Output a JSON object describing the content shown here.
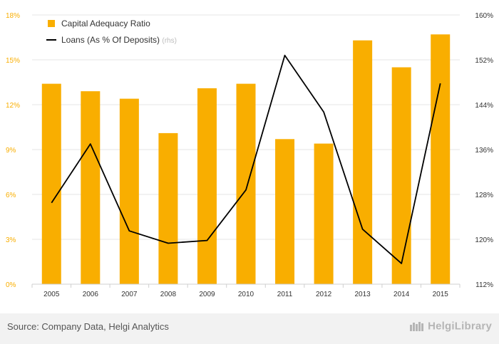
{
  "chart_data": {
    "type": "bar+line",
    "categories": [
      "2005",
      "2006",
      "2007",
      "2008",
      "2009",
      "2010",
      "2011",
      "2012",
      "2013",
      "2014",
      "2015"
    ],
    "series": [
      {
        "name": "Capital Adequacy Ratio",
        "type": "bar",
        "axis": "left",
        "color": "#f9ae00",
        "values": [
          13.4,
          12.9,
          12.4,
          10.1,
          13.1,
          13.4,
          9.7,
          9.4,
          16.3,
          14.5,
          16.7
        ]
      },
      {
        "name": "Loans (As % Of Deposits)",
        "name_suffix": "(rhs)",
        "type": "line",
        "axis": "right",
        "color": "#000000",
        "values": [
          126.5,
          137.0,
          121.5,
          119.3,
          119.8,
          128.8,
          152.8,
          142.7,
          121.8,
          115.7,
          147.8
        ]
      }
    ],
    "y_left": {
      "min": 0,
      "max": 18,
      "ticks": [
        0,
        3,
        6,
        9,
        12,
        15,
        18
      ],
      "tick_labels": [
        "0%",
        "3%",
        "6%",
        "9%",
        "12%",
        "15%",
        "18%"
      ]
    },
    "y_right": {
      "min": 112,
      "max": 160,
      "ticks": [
        112,
        120,
        128,
        136,
        144,
        152,
        160
      ],
      "tick_labels": [
        "112%",
        "120%",
        "128%",
        "136%",
        "144%",
        "152%",
        "160%"
      ]
    },
    "grid": true,
    "legend": "top-left"
  },
  "footer": {
    "source": "Source: Company Data, Helgi Analytics",
    "brand": "HelgiLibrary"
  },
  "colors": {
    "bar": "#f9ae00",
    "line": "#000000",
    "axis_label": "#f9ae00",
    "right_axis_label": "#333333",
    "grid": "#e6e6e6"
  }
}
